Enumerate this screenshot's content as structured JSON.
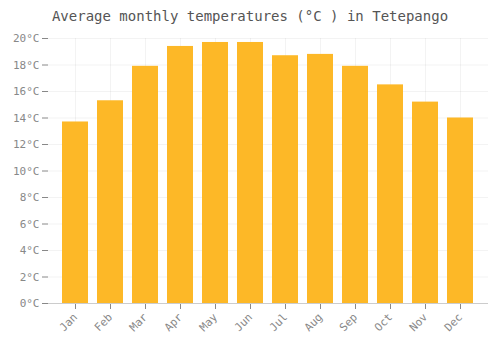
{
  "chart_data": {
    "type": "bar",
    "title": "Average monthly temperatures (°C ) in Tetepango",
    "categories": [
      "Jan",
      "Feb",
      "Mar",
      "Apr",
      "May",
      "Jun",
      "Jul",
      "Aug",
      "Sep",
      "Oct",
      "Nov",
      "Dec"
    ],
    "values": [
      13.7,
      15.3,
      17.9,
      19.4,
      19.7,
      19.7,
      18.7,
      18.8,
      17.9,
      16.5,
      15.2,
      14.0
    ],
    "color": "#FDB827",
    "ylim": [
      0,
      20
    ],
    "yticks": [
      {
        "value": 0,
        "label": "0°C"
      },
      {
        "value": 2,
        "label": "2°C"
      },
      {
        "value": 4,
        "label": "4°C"
      },
      {
        "value": 6,
        "label": "6°C"
      },
      {
        "value": 8,
        "label": "8°C"
      },
      {
        "value": 10,
        "label": "10°C"
      },
      {
        "value": 12,
        "label": "12°C"
      },
      {
        "value": 14,
        "label": "14°C"
      },
      {
        "value": 16,
        "label": "16°C"
      },
      {
        "value": 18,
        "label": "18°C"
      },
      {
        "value": 20,
        "label": "20°C"
      }
    ],
    "grid": true
  }
}
